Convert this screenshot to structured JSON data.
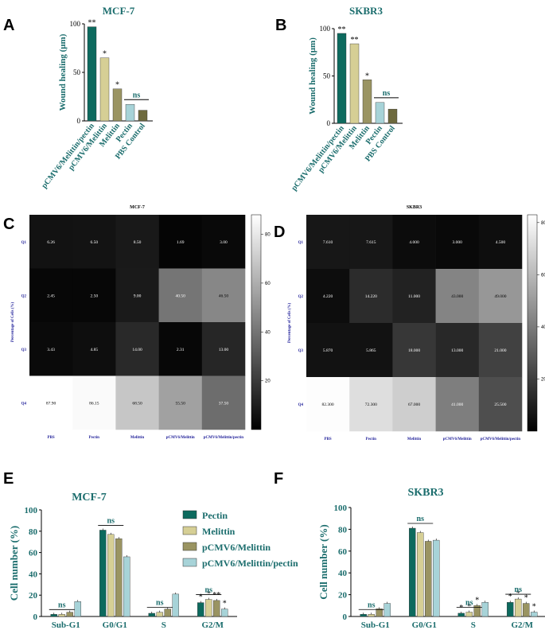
{
  "panel_letters": {
    "a": "A",
    "b": "B",
    "c": "C",
    "d": "D",
    "e": "E",
    "f": "F"
  },
  "chart_data": [
    {
      "id": "A",
      "type": "bar",
      "title": "MCF-7",
      "ylabel": "Wound healing (μm)",
      "ylim": [
        0,
        100
      ],
      "yticks": [
        0,
        50,
        100
      ],
      "categories": [
        "pCMV6/Melittin/pectin",
        "pCMV6/Melittin",
        "Melittin",
        "Pectin",
        "PBS Control"
      ],
      "values": [
        97,
        65,
        33,
        17,
        11
      ],
      "colors": [
        "#0d6a5e",
        "#d6cf95",
        "#9a9462",
        "#a7d3d8",
        "#6e6a3e"
      ],
      "annotations": [
        "**",
        "*",
        "*",
        "",
        ""
      ],
      "ns_label": "ns"
    },
    {
      "id": "B",
      "type": "bar",
      "title": "SKBR3",
      "ylabel": "Wound healing (μm)",
      "ylim": [
        0,
        100
      ],
      "yticks": [
        0,
        50,
        100
      ],
      "categories": [
        "pCMV6/Melittin/pectin",
        "pCMV6/Melittin",
        "Melittin",
        "Pectin",
        "PBS Control"
      ],
      "values": [
        95,
        84,
        46,
        22,
        15
      ],
      "colors": [
        "#0d6a5e",
        "#d6cf95",
        "#9a9462",
        "#a7d3d8",
        "#6e6a3e"
      ],
      "annotations": [
        "**",
        "**",
        "*",
        "",
        ""
      ],
      "ns_label": "ns"
    },
    {
      "id": "C",
      "type": "heatmap",
      "title": "MCF-7",
      "ylabel": "Percentage of Cells (%)",
      "rows": [
        "Q1",
        "Q2",
        "Q3",
        "Q4"
      ],
      "columns": [
        "PBS",
        "Pectin",
        "Melittin",
        "pCMV6/Melittin",
        "pCMV6/Melittin/pectin"
      ],
      "cells": [
        [
          "6.26",
          "6.50",
          "8.50",
          "1.69",
          "3.00"
        ],
        [
          "2.45",
          "2.50",
          "9.00",
          "40.50",
          "46.50"
        ],
        [
          "3.43",
          "4.85",
          "14.00",
          "2.31",
          "13.00"
        ],
        [
          "87.90",
          "86.15",
          "68.50",
          "55.50",
          "37.50"
        ]
      ],
      "values": [
        [
          6.26,
          6.5,
          8.5,
          1.69,
          3.0
        ],
        [
          2.45,
          2.5,
          9.0,
          40.5,
          46.5
        ],
        [
          3.43,
          4.85,
          14.0,
          2.31,
          13.0
        ],
        [
          87.9,
          86.15,
          68.5,
          55.5,
          37.5
        ]
      ],
      "vmin": 0,
      "vmax": 88,
      "colorbar_ticks": [
        20,
        40,
        60,
        80
      ]
    },
    {
      "id": "D",
      "type": "heatmap",
      "title": "SKBR3",
      "ylabel": "Percentage of Cells (%)",
      "rows": [
        "Q1",
        "Q2",
        "Q3",
        "Q4"
      ],
      "columns": [
        "PBS",
        "Pectin",
        "Melittin",
        "pCMV6/Melittin",
        "pCMV6/Melittin/pectin"
      ],
      "cells": [
        [
          "7.610",
          "7.615",
          "4.000",
          "3.000",
          "4.500"
        ],
        [
          "4.220",
          "14.220",
          "11.000",
          "43.000",
          "49.000"
        ],
        [
          "5.870",
          "5.865",
          "18.000",
          "13.000",
          "21.000"
        ],
        [
          "82.300",
          "72.300",
          "67.000",
          "41.000",
          "25.500"
        ]
      ],
      "values": [
        [
          7.61,
          7.615,
          4.0,
          3.0,
          4.5
        ],
        [
          4.22,
          14.22,
          11.0,
          43.0,
          49.0
        ],
        [
          5.87,
          5.865,
          18.0,
          13.0,
          21.0
        ],
        [
          82.3,
          72.3,
          67.0,
          41.0,
          25.5
        ]
      ],
      "vmin": 0,
      "vmax": 83,
      "colorbar_ticks": [
        20,
        40,
        60,
        80
      ]
    },
    {
      "id": "E",
      "type": "bar",
      "title": "MCF-7",
      "ylabel": "Cell number (%)",
      "ylim": [
        0,
        100
      ],
      "yticks": [
        0,
        20,
        40,
        60,
        80,
        100
      ],
      "categories": [
        "Sub-G1",
        "G0/G1",
        "S",
        "G2/M"
      ],
      "series": [
        {
          "name": "Pectin",
          "color": "#0d6a5e",
          "values": [
            2,
            81,
            3,
            13
          ]
        },
        {
          "name": "Melittin",
          "color": "#d6cf95",
          "values": [
            2,
            77,
            4,
            16
          ]
        },
        {
          "name": "pCMV6/Melittin",
          "color": "#9a9462",
          "values": [
            4,
            73,
            7,
            15
          ]
        },
        {
          "name": "pCMV6/Melittin/pectin",
          "color": "#a7d3d8",
          "values": [
            14,
            56,
            21,
            7
          ]
        }
      ],
      "annotations": [
        [
          "",
          "",
          "",
          "*"
        ],
        [
          "",
          "",
          "",
          "*"
        ],
        [
          "",
          "",
          "",
          "**"
        ],
        [
          "",
          "",
          "",
          "*"
        ]
      ],
      "ns_label": "ns"
    },
    {
      "id": "F",
      "type": "bar",
      "title": "SKBR3",
      "ylabel": "Cell number (%)",
      "ylim": [
        0,
        100
      ],
      "yticks": [
        0,
        20,
        40,
        60,
        80,
        100
      ],
      "categories": [
        "Sub-G1",
        "G0/G1",
        "S",
        "G2/M"
      ],
      "series": [
        {
          "name": "Pectin",
          "color": "#0d6a5e",
          "values": [
            2,
            81,
            3,
            13
          ]
        },
        {
          "name": "Melittin",
          "color": "#d6cf95",
          "values": [
            2,
            77,
            4,
            16
          ]
        },
        {
          "name": "pCMV6/Melittin",
          "color": "#9a9462",
          "values": [
            7,
            69,
            10,
            12
          ]
        },
        {
          "name": "pCMV6/Melittin/pectin",
          "color": "#a7d3d8",
          "values": [
            12,
            70,
            13,
            4
          ]
        }
      ],
      "annotations": [
        [
          "",
          "",
          "*",
          "*"
        ],
        [
          "",
          "",
          "*",
          "*"
        ],
        [
          "",
          "",
          "*",
          "*"
        ],
        [
          "",
          "",
          "",
          "*"
        ]
      ],
      "ns_label": "ns"
    }
  ]
}
